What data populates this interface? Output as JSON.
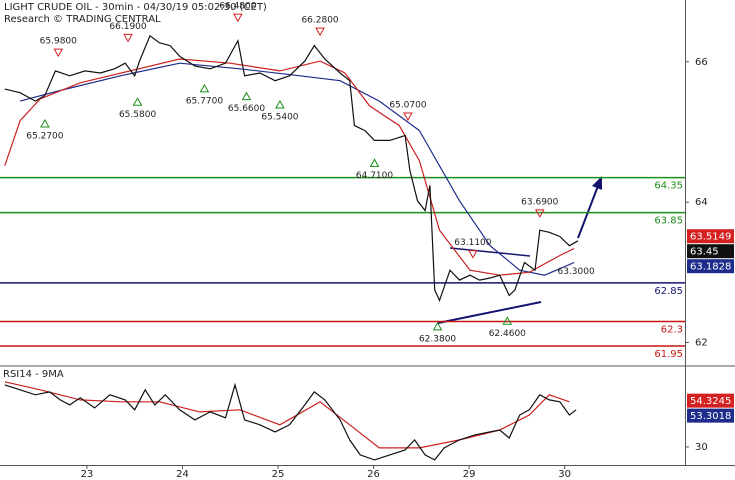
{
  "chart_data": [
    {
      "type": "line",
      "title": "LIGHT CRUDE OIL - 30min - 04/30/19 05:02:30 (CET)",
      "subtitle": "Research © TRADING CENTRAL",
      "xlim": [
        -0.91,
        6.26
      ],
      "xticks": [
        {
          "value": 0,
          "label": "23"
        },
        {
          "value": 1,
          "label": "24"
        },
        {
          "value": 2,
          "label": "25"
        },
        {
          "value": 3,
          "label": "26"
        },
        {
          "value": 4,
          "label": "29"
        },
        {
          "value": 5,
          "label": "30"
        }
      ],
      "ylim": [
        61.68,
        66.88
      ],
      "yticks": [
        62,
        64,
        66
      ],
      "series": [
        {
          "color": "#1e2c8c",
          "x": [
            -0.7,
            -0.28,
            0.35,
            0.97,
            1.6,
            2.23,
            2.65,
            3.06,
            3.48,
            3.9,
            4.22,
            4.53,
            4.79,
            5.1
          ],
          "values": [
            65.44,
            65.59,
            65.8,
            65.98,
            65.9,
            65.8,
            65.73,
            65.44,
            65.02,
            64.02,
            63.38,
            63.03,
            62.96,
            63.14
          ]
        },
        {
          "color": "#cc2020",
          "x": [
            -0.86,
            -0.7,
            -0.49,
            -0.07,
            0.45,
            0.97,
            1.5,
            2.02,
            2.44,
            2.7,
            2.96,
            3.27,
            3.48,
            3.69,
            4.01,
            4.32,
            4.63,
            4.95,
            5.1
          ],
          "values": [
            64.52,
            65.16,
            65.47,
            65.7,
            65.87,
            66.04,
            65.98,
            65.87,
            66.01,
            65.84,
            65.37,
            65.09,
            64.59,
            63.6,
            63.03,
            62.96,
            63.0,
            63.24,
            63.34
          ]
        },
        {
          "color": "#111111",
          "x": [
            -0.86,
            -0.7,
            -0.54,
            -0.44,
            -0.33,
            -0.18,
            -0.02,
            0.14,
            0.29,
            0.4,
            0.5,
            0.55,
            0.66,
            0.76,
            0.87,
            0.97,
            1.13,
            1.29,
            1.45,
            1.58,
            1.65,
            1.81,
            1.97,
            2.12,
            2.28,
            2.38,
            2.49,
            2.65,
            2.75,
            2.8,
            2.91,
            3.01,
            3.17,
            3.33,
            3.38,
            3.46,
            3.54,
            3.59,
            3.64,
            3.69,
            3.8,
            3.9,
            4.01,
            4.11,
            4.22,
            4.32,
            4.42,
            4.48,
            4.58,
            4.69,
            4.74,
            4.84,
            4.95,
            5.05,
            5.14
          ],
          "values": [
            65.61,
            65.56,
            65.44,
            65.52,
            65.87,
            65.8,
            65.87,
            65.84,
            65.9,
            65.98,
            65.8,
            66.01,
            66.37,
            66.27,
            66.23,
            66.08,
            65.94,
            65.9,
            65.98,
            66.3,
            65.8,
            65.84,
            65.73,
            65.8,
            66.01,
            66.23,
            66.04,
            65.84,
            65.73,
            65.09,
            65.02,
            64.88,
            64.88,
            64.95,
            64.45,
            64.02,
            63.88,
            64.24,
            62.75,
            62.6,
            63.03,
            62.89,
            62.96,
            62.89,
            62.92,
            62.96,
            62.67,
            62.75,
            63.14,
            63.03,
            63.6,
            63.57,
            63.51,
            63.38,
            63.45
          ]
        }
      ],
      "levels": [
        {
          "value": 64.35,
          "color": "#1a8f1a"
        },
        {
          "value": 63.85,
          "color": "#1a8f1a"
        },
        {
          "value": 62.85,
          "color": "#141470"
        },
        {
          "value": 62.3,
          "color": "#c81414"
        },
        {
          "value": 61.95,
          "color": "#c81414"
        }
      ],
      "peaks": [
        {
          "label": "65.9800",
          "value": 65.98,
          "x": -0.3
        },
        {
          "label": "66.1900",
          "value": 66.19,
          "x": 0.43
        },
        {
          "label": "66.4800",
          "value": 66.48,
          "x": 1.58
        },
        {
          "label": "66.2800",
          "value": 66.28,
          "x": 2.44
        },
        {
          "label": "65.0700",
          "value": 65.07,
          "x": 3.36
        },
        {
          "label": "63.1100",
          "value": 63.11,
          "x": 4.04
        },
        {
          "label": "63.6900",
          "value": 63.69,
          "x": 4.74
        }
      ],
      "troughs": [
        {
          "label": "65.2700",
          "value": 65.27,
          "x": -0.44
        },
        {
          "label": "65.5800",
          "value": 65.58,
          "x": 0.53
        },
        {
          "label": "65.7700",
          "value": 65.77,
          "x": 1.23
        },
        {
          "label": "65.6600",
          "value": 65.66,
          "x": 1.67
        },
        {
          "label": "65.5400",
          "value": 65.54,
          "x": 2.02
        },
        {
          "label": "64.7100",
          "value": 64.71,
          "x": 3.01
        },
        {
          "label": "62.3800",
          "value": 62.38,
          "x": 3.67
        },
        {
          "label": "62.4600",
          "value": 62.46,
          "x": 4.4
        }
      ],
      "note": {
        "label": "63.3000",
        "value": 63.3,
        "x": 5.12
      },
      "price_tags": [
        {
          "value": 63.5149,
          "color": "#d42020"
        },
        {
          "value": 63.45,
          "color": "#111111"
        },
        {
          "value": 63.1828,
          "color": "#1e2c8c"
        }
      ]
    },
    {
      "type": "line",
      "title": "RSI14 - 9MA",
      "xlim": [
        -0.91,
        6.26
      ],
      "ylim": [
        20.5,
        72
      ],
      "yticks": [
        30
      ],
      "series": [
        {
          "color": "#cc2020",
          "x": [
            -0.86,
            -0.49,
            -0.07,
            0.35,
            0.76,
            1.18,
            1.6,
            2.02,
            2.44,
            2.75,
            3.06,
            3.48,
            3.9,
            4.32,
            4.63,
            4.84,
            5.05
          ],
          "values": [
            64.2,
            60.0,
            54.7,
            53.7,
            53.7,
            48.4,
            49.5,
            41.6,
            53.7,
            41.6,
            29.5,
            29.5,
            33.7,
            38.9,
            46.8,
            57.4,
            53.7
          ]
        },
        {
          "color": "#111111",
          "x": [
            -0.86,
            -0.7,
            -0.54,
            -0.39,
            -0.28,
            -0.18,
            -0.07,
            0.08,
            0.24,
            0.4,
            0.5,
            0.61,
            0.71,
            0.82,
            0.97,
            1.13,
            1.29,
            1.45,
            1.55,
            1.65,
            1.81,
            1.97,
            2.12,
            2.28,
            2.38,
            2.49,
            2.65,
            2.75,
            2.86,
            3.01,
            3.17,
            3.33,
            3.43,
            3.54,
            3.64,
            3.74,
            3.9,
            4.06,
            4.22,
            4.32,
            4.42,
            4.53,
            4.63,
            4.74,
            4.84,
            4.95,
            5.05,
            5.12
          ],
          "values": [
            62.6,
            60.0,
            57.4,
            58.9,
            54.7,
            52.1,
            55.8,
            50.5,
            57.4,
            54.7,
            49.5,
            60.0,
            52.1,
            57.4,
            49.5,
            44.2,
            48.4,
            45.3,
            62.6,
            44.2,
            41.6,
            37.9,
            41.6,
            52.1,
            58.9,
            54.7,
            44.2,
            33.7,
            25.8,
            23.2,
            25.8,
            28.4,
            33.7,
            25.8,
            23.2,
            29.5,
            33.7,
            36.3,
            37.9,
            38.9,
            34.7,
            46.8,
            49.5,
            57.4,
            54.7,
            53.7,
            46.8,
            49.5
          ]
        }
      ],
      "price_tags": [
        {
          "value": 54.3245,
          "color": "#d42020"
        },
        {
          "value": 53.3018,
          "color": "#1e2c8c"
        }
      ]
    }
  ]
}
